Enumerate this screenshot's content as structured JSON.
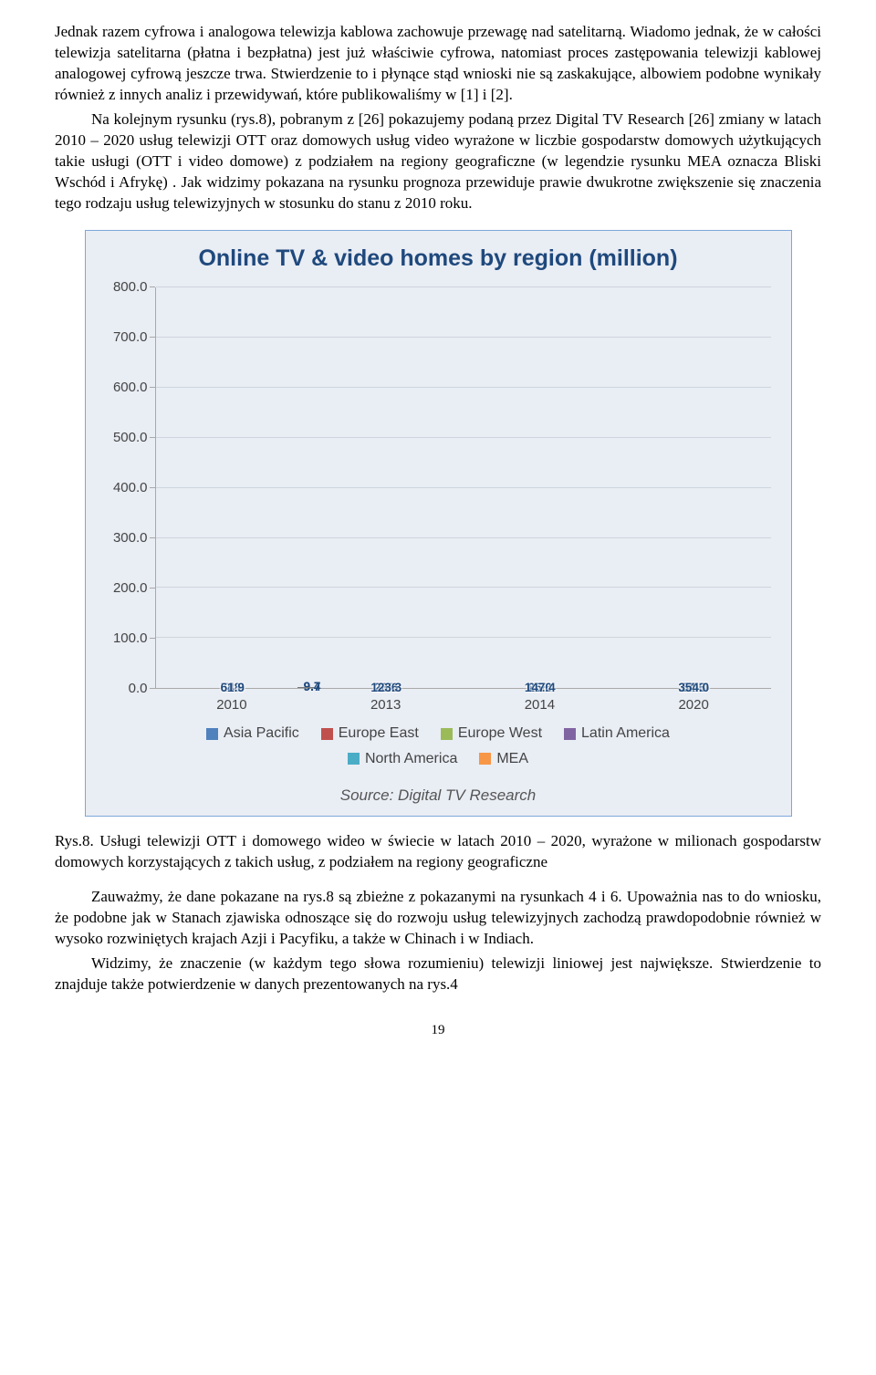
{
  "paragraphs": {
    "p1": "Jednak razem cyfrowa i analogowa telewizja kablowa zachowuje przewagę nad satelitarną. Wiadomo jednak, że w całości telewizja satelitarna (płatna i bezpłatna) jest już właściwie cyfrowa, natomiast proces zastępowania telewizji kablowej analogowej cyfrową jeszcze trwa. Stwierdzenie to i płynące stąd wnioski nie są zaskakujące, albowiem podobne wynikały również z innych analiz i przewidywań, które publikowaliśmy w [1] i [2].",
    "p2": "Na kolejnym rysunku (rys.8), pobranym z [26] pokazujemy podaną przez Digital TV Research [26] zmiany w latach 2010 – 2020  usług telewizji OTT oraz domowych usług video wyrażone w liczbie gospodarstw domowych użytkujących takie usługi (OTT i video domowe) z podziałem na regiony geograficzne (w legendzie rysunku MEA oznacza Bliski Wschód i Afrykę) . Jak widzimy pokazana na rysunku prognoza przewiduje prawie dwukrotne zwiększenie się znaczenia tego rodzaju usług telewizyjnych w stosunku do stanu z 2010 roku.",
    "caption": "Rys.8. Usługi telewizji OTT i domowego wideo w świecie w latach 2010 – 2020, wyrażone w milionach gospodarstw domowych korzystających z takich usług, z podziałem na regiony geograficzne",
    "p3": "Zauważmy, że dane pokazane na rys.8 są zbieżne z pokazanymi na rysunkach 4 i 6. Upoważnia nas to do wniosku, że podobne jak w Stanach zjawiska odnoszące się do rozwoju usług telewizyjnych zachodzą prawdopodobnie również w wysoko rozwiniętych krajach Azji i Pacyfiku, a także w Chinach i w Indiach.",
    "p4": "Widzimy, że znaczenie (w każdym tego słowa rozumieniu) telewizji liniowej jest największe. Stwierdzenie to znajduje także potwierdzenie w danych prezentowanych na rys.4"
  },
  "chart": {
    "title": "Online TV & video homes by region (million)",
    "source": "Source: Digital TV Research",
    "y_max": 800,
    "y_step": 100,
    "y_ticks": [
      "0.0",
      "100.0",
      "200.0",
      "300.0",
      "400.0",
      "500.0",
      "600.0",
      "700.0",
      "800.0"
    ],
    "background_color": "#e9edf4",
    "grid_color": "#cfd5de",
    "border_color": "#7da7d9",
    "title_color": "#1f497d",
    "categories": [
      "2010",
      "2013",
      "2014",
      "2020"
    ],
    "series": [
      {
        "name": "Asia Pacific",
        "color": "#4f81bd"
      },
      {
        "name": "Europe East",
        "color": "#c0504d"
      },
      {
        "name": "Europe West",
        "color": "#9bbb59"
      },
      {
        "name": "Latin America",
        "color": "#8064a2"
      },
      {
        "name": "North America",
        "color": "#4bacc6"
      },
      {
        "name": "MEA",
        "color": "#f79646"
      }
    ],
    "stacks": [
      {
        "year": "2010",
        "values": [
          61.9,
          9.4,
          54.8,
          9.7,
          58.4,
          2.8
        ],
        "labels_inside": [
          true,
          false,
          true,
          false,
          true,
          true
        ],
        "ext": [
          null,
          {
            "text": "9.4",
            "yOffset": 0
          },
          null,
          {
            "text": "9.7",
            "yOffset": 0
          },
          null,
          null
        ]
      },
      {
        "year": "2013",
        "values": [
          123.3,
          20.6,
          78.4,
          21.1,
          78.5,
          4.8
        ],
        "labels_inside": [
          true,
          true,
          true,
          true,
          true,
          true
        ]
      },
      {
        "year": "2014",
        "values": [
          147.4,
          25.0,
          86.6,
          26.1,
          83.6,
          5.8
        ],
        "labels_inside": [
          true,
          true,
          true,
          true,
          true,
          true
        ]
      },
      {
        "year": "2020",
        "values": [
          354.0,
          54.3,
          119.4,
          59.7,
          105.6,
          13.6
        ],
        "labels_inside": [
          true,
          true,
          true,
          true,
          true,
          true
        ]
      }
    ]
  },
  "page_number": "19"
}
